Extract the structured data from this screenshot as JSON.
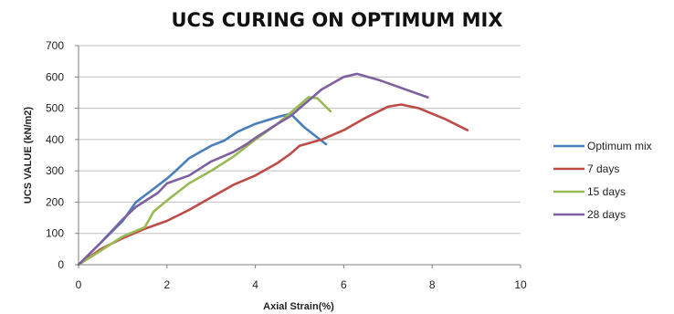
{
  "chart_data": {
    "type": "line",
    "title": "UCS CURING ON OPTIMUM MIX",
    "xlabel": "Axial Strain(%)",
    "ylabel": "UCS VALUE (kN/m2)",
    "xlim": [
      0,
      10
    ],
    "ylim": [
      0,
      700
    ],
    "xticks": [
      "0",
      "2",
      "4",
      "6",
      "8",
      "10"
    ],
    "yticks": [
      "0",
      "100",
      "200",
      "300",
      "400",
      "500",
      "600",
      "700"
    ],
    "grid": "horizontal",
    "legend_position": "right",
    "series": [
      {
        "name": "Optimum mix",
        "color": "#4a7ebb",
        "points": [
          [
            0,
            0
          ],
          [
            0.5,
            70
          ],
          [
            1,
            140
          ],
          [
            1.3,
            200
          ],
          [
            1.6,
            232
          ],
          [
            2,
            275
          ],
          [
            2.2,
            300
          ],
          [
            2.5,
            340
          ],
          [
            3,
            380
          ],
          [
            3.3,
            397
          ],
          [
            3.6,
            425
          ],
          [
            4,
            450
          ],
          [
            4.5,
            472
          ],
          [
            4.8,
            482
          ],
          [
            5.1,
            440
          ],
          [
            5.6,
            385
          ]
        ]
      },
      {
        "name": "7 days",
        "color": "#be4b48",
        "points": [
          [
            0,
            0
          ],
          [
            0.5,
            50
          ],
          [
            1,
            85
          ],
          [
            1.5,
            115
          ],
          [
            2,
            140
          ],
          [
            2.5,
            175
          ],
          [
            3,
            215
          ],
          [
            3.5,
            255
          ],
          [
            4,
            285
          ],
          [
            4.5,
            325
          ],
          [
            4.8,
            355
          ],
          [
            5,
            380
          ],
          [
            5.5,
            400
          ],
          [
            6,
            430
          ],
          [
            6.5,
            470
          ],
          [
            7,
            505
          ],
          [
            7.3,
            512
          ],
          [
            7.7,
            500
          ],
          [
            8.3,
            465
          ],
          [
            8.8,
            430
          ]
        ]
      },
      {
        "name": "15 days",
        "color": "#98b954",
        "points": [
          [
            0,
            0
          ],
          [
            0.5,
            45
          ],
          [
            1,
            90
          ],
          [
            1.5,
            120
          ],
          [
            1.7,
            170
          ],
          [
            2,
            205
          ],
          [
            2.5,
            260
          ],
          [
            3,
            300
          ],
          [
            3.5,
            345
          ],
          [
            4,
            400
          ],
          [
            4.5,
            450
          ],
          [
            5,
            510
          ],
          [
            5.2,
            535
          ],
          [
            5.4,
            532
          ],
          [
            5.7,
            490
          ]
        ]
      },
      {
        "name": "28 days",
        "color": "#7d60a0",
        "points": [
          [
            0,
            0
          ],
          [
            0.5,
            70
          ],
          [
            1,
            145
          ],
          [
            1.3,
            185
          ],
          [
            1.8,
            230
          ],
          [
            2,
            260
          ],
          [
            2.5,
            285
          ],
          [
            3,
            330
          ],
          [
            3.5,
            360
          ],
          [
            3.8,
            385
          ],
          [
            4,
            405
          ],
          [
            4.5,
            450
          ],
          [
            4.8,
            475
          ],
          [
            5,
            500
          ],
          [
            5.5,
            560
          ],
          [
            6,
            600
          ],
          [
            6.3,
            610
          ],
          [
            6.8,
            590
          ],
          [
            7.3,
            565
          ],
          [
            7.9,
            535
          ]
        ]
      }
    ]
  }
}
